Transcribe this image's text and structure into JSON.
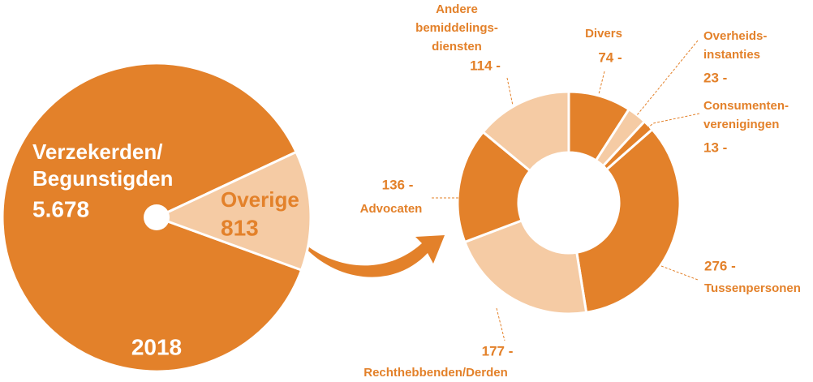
{
  "chart_data": [
    {
      "type": "pie",
      "categories": [
        [
          "Verzekerden/",
          "Begunstigden"
        ],
        [
          "Overige"
        ]
      ],
      "values": [
        5678,
        813
      ],
      "value_labels": [
        "5.678",
        "813"
      ],
      "colors": [
        "#e3812a",
        "#f5cba4"
      ],
      "annotation": "2018"
    },
    {
      "type": "donut",
      "categories": [
        [
          "Divers"
        ],
        [
          "Overheids-",
          "instanties"
        ],
        [
          "Consumenten-",
          "verenigingen"
        ],
        [
          "Tussenpersonen"
        ],
        [
          "Rechthebbenden/Derden"
        ],
        [
          "Advocaten"
        ],
        [
          "Andere",
          "bemiddelings-",
          "diensten"
        ]
      ],
      "values": [
        74,
        23,
        13,
        276,
        177,
        136,
        114
      ],
      "value_labels": [
        "74 -",
        "23 -",
        "13 -",
        "276 -",
        "177 -",
        "136 -",
        "114 -"
      ],
      "colors": [
        "#e3812a",
        "#f5cba4",
        "#e3812a",
        "#e3812a",
        "#f5cba4",
        "#e3812a",
        "#f5cba4"
      ]
    }
  ]
}
